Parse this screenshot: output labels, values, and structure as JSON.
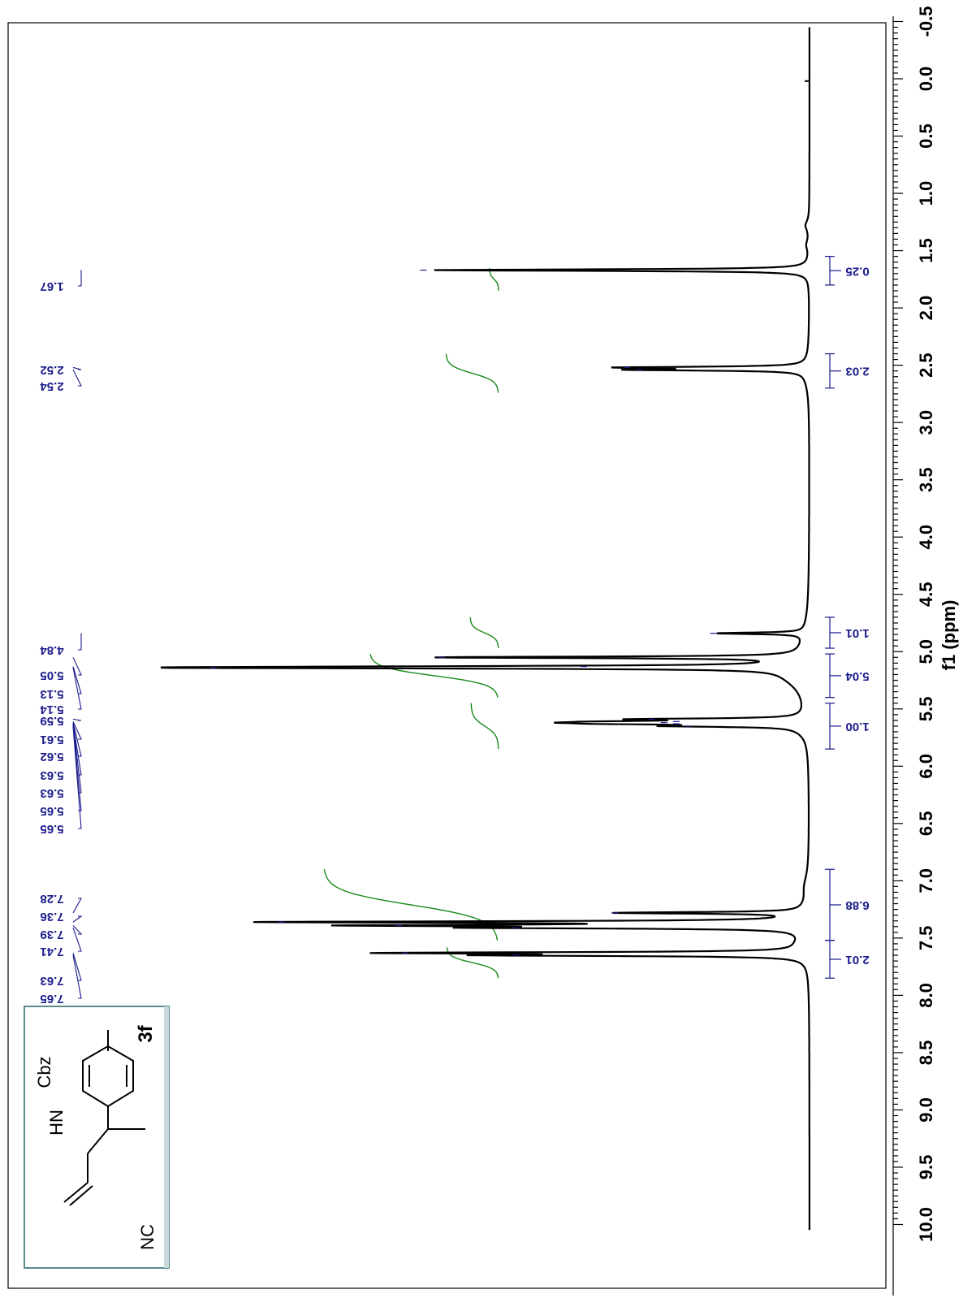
{
  "chart_data": {
    "type": "line",
    "title": "",
    "xlabel": "f1 (ppm)",
    "ylabel": "",
    "xlim": [
      10.0,
      -0.5
    ],
    "orientation": "rotated-90-clockwise",
    "x_ticks": [
      "-0.5",
      "0.0",
      "0.5",
      "1.0",
      "1.5",
      "2.0",
      "2.5",
      "3.0",
      "3.5",
      "4.0",
      "4.5",
      "5.0",
      "5.5",
      "6.0",
      "6.5",
      "7.0",
      "7.5",
      "8.0",
      "8.5",
      "9.0",
      "9.5",
      "10.0"
    ],
    "peaks": [
      {
        "ppm": 1.67,
        "height": 0.61
      },
      {
        "ppm": 2.52,
        "height": 0.28
      },
      {
        "ppm": 2.54,
        "height": 0.26
      },
      {
        "ppm": 4.84,
        "height": 0.14
      },
      {
        "ppm": 5.05,
        "height": 0.58
      },
      {
        "ppm": 5.13,
        "height": 0.35
      },
      {
        "ppm": 5.14,
        "height": 0.95
      },
      {
        "ppm": 5.59,
        "height": 0.24
      },
      {
        "ppm": 5.61,
        "height": 0.2
      },
      {
        "ppm": 5.62,
        "height": 0.22
      },
      {
        "ppm": 5.63,
        "height": 0.2
      },
      {
        "ppm": 5.65,
        "height": 0.18
      },
      {
        "ppm": 7.28,
        "height": 0.3
      },
      {
        "ppm": 7.36,
        "height": 0.84
      },
      {
        "ppm": 7.39,
        "height": 0.65
      },
      {
        "ppm": 7.41,
        "height": 0.46
      },
      {
        "ppm": 7.63,
        "height": 0.64
      },
      {
        "ppm": 7.65,
        "height": 0.46
      }
    ],
    "peak_labels": [
      "1.67",
      "2.52",
      "2.54",
      "4.84",
      "5.05",
      "5.13",
      "5.14",
      "5.59",
      "5.61",
      "5.62",
      "5.63",
      "5.63",
      "5.65",
      "5.65",
      "7.28",
      "7.36",
      "7.39",
      "7.41",
      "7.63",
      "7.65"
    ],
    "integrations": [
      {
        "from": 1.55,
        "to": 1.8,
        "value": "0.25"
      },
      {
        "from": 2.4,
        "to": 2.7,
        "value": "2.03"
      },
      {
        "from": 4.7,
        "to": 4.97,
        "value": "1.01"
      },
      {
        "from": 5.02,
        "to": 5.4,
        "value": "5.04"
      },
      {
        "from": 5.45,
        "to": 5.85,
        "value": "1.00"
      },
      {
        "from": 6.9,
        "to": 7.52,
        "value": "6.88"
      },
      {
        "from": 7.52,
        "to": 7.85,
        "value": "2.01"
      }
    ],
    "colors": {
      "spectrum": "#000000",
      "integral": "#1a8a1a",
      "labels": "#1a1a8c"
    }
  },
  "structure": {
    "compound_label": "3f",
    "text_hn": "HN",
    "text_cbz": "Cbz",
    "text_nc": "NC"
  }
}
